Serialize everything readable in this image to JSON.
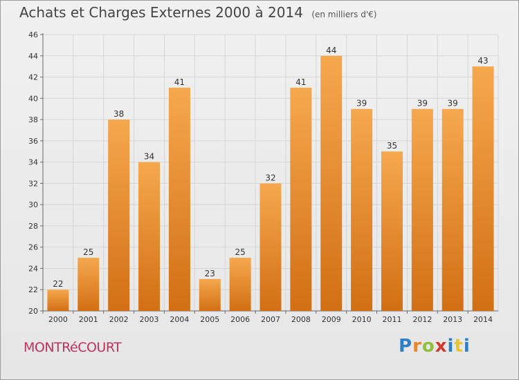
{
  "header": {
    "title": "Achats et Charges Externes 2000 à 2014",
    "subtitle": "(en milliers d'€)"
  },
  "footer": {
    "city": "MONTRéCOURT",
    "logo": "Proxiti"
  },
  "colors": {
    "bar_top": "#f6a84e",
    "bar_bottom": "#d26f14",
    "grid": "#d6d6d6",
    "axis": "#666666",
    "city": "#c0315e"
  },
  "chart_data": {
    "type": "bar",
    "categories": [
      "2000",
      "2001",
      "2002",
      "2003",
      "2004",
      "2005",
      "2006",
      "2007",
      "2008",
      "2009",
      "2010",
      "2011",
      "2012",
      "2013",
      "2014"
    ],
    "values": [
      22,
      25,
      38,
      34,
      41,
      23,
      25,
      32,
      41,
      44,
      39,
      35,
      39,
      39,
      43
    ],
    "ylim": [
      20,
      46
    ],
    "yticks": [
      20,
      22,
      24,
      26,
      28,
      30,
      32,
      34,
      36,
      38,
      40,
      42,
      44,
      46
    ],
    "grid": true,
    "title": "Achats et Charges Externes 2000 à 2014",
    "xlabel": "",
    "ylabel": ""
  }
}
